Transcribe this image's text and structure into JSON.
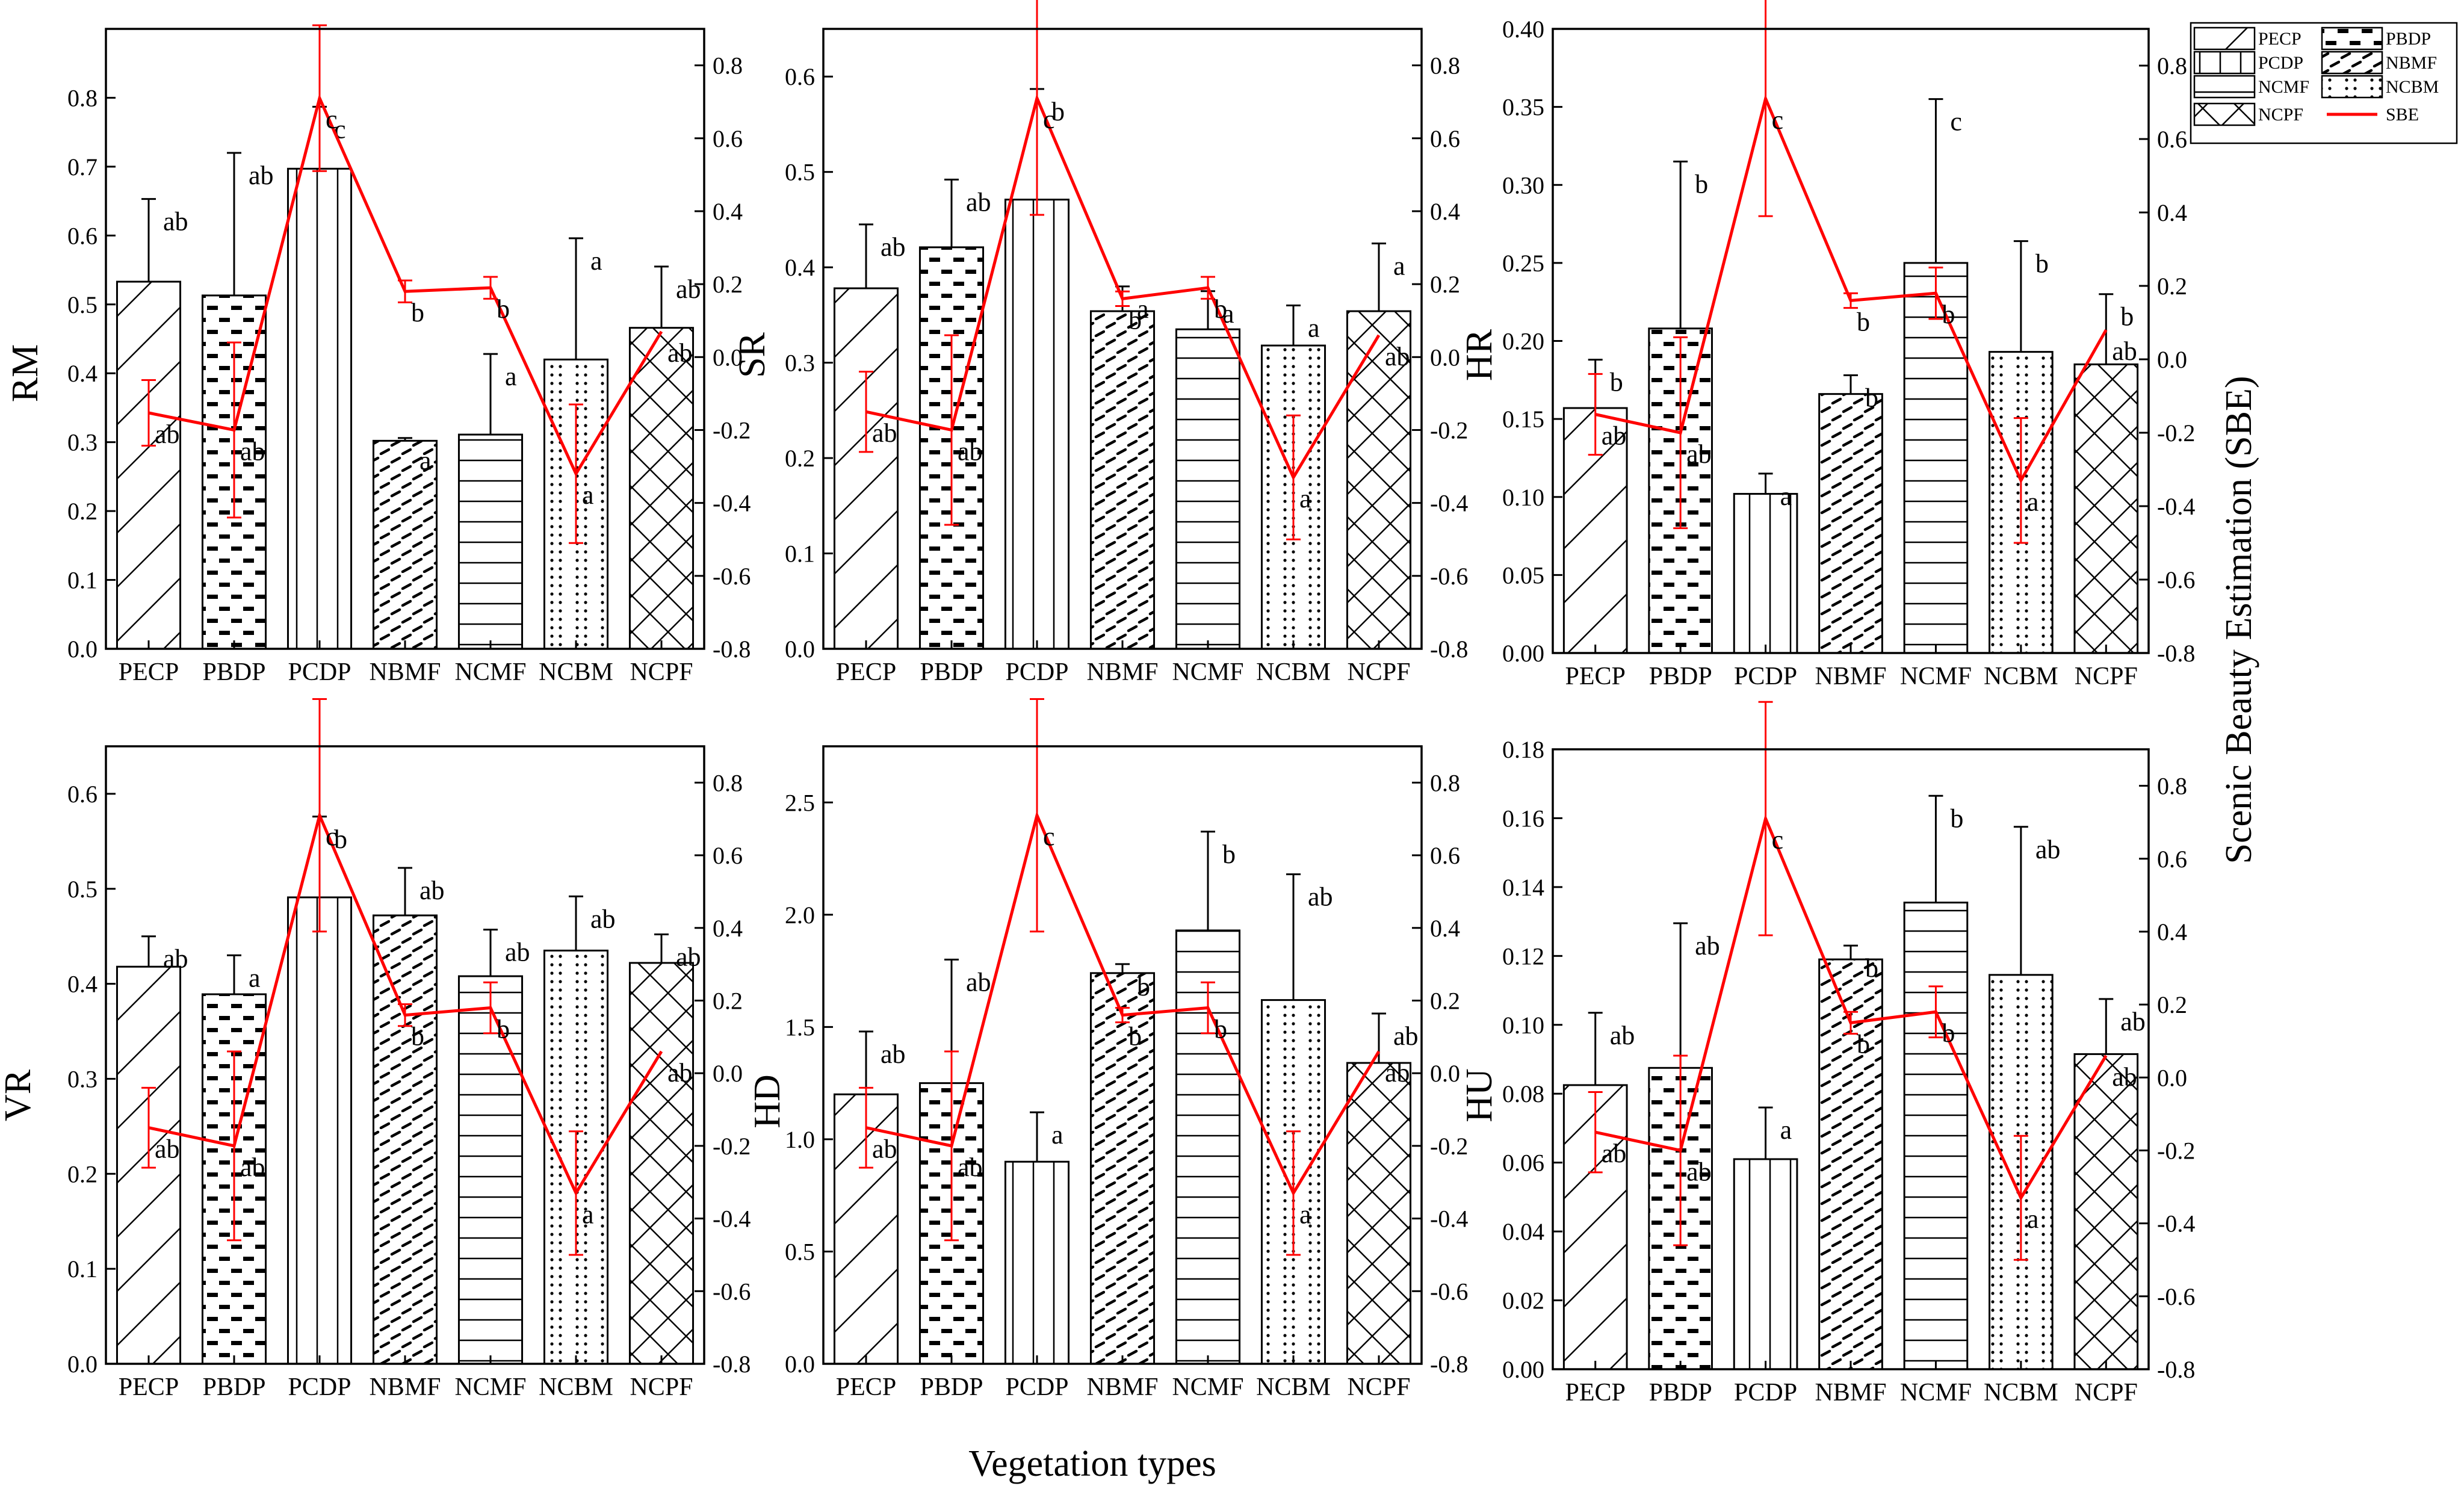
{
  "figure": {
    "xlabel": "Vegetation types",
    "right_ylabel": "Scenic Beauty Estimation (SBE)"
  },
  "legend": {
    "entries": [
      {
        "name": "PECP",
        "pattern": "diag"
      },
      {
        "name": "PBDP",
        "pattern": "dash"
      },
      {
        "name": "PCDP",
        "pattern": "vert"
      },
      {
        "name": "NBMF",
        "pattern": "dashdiag"
      },
      {
        "name": "NCMF",
        "pattern": "horiz"
      },
      {
        "name": "NCBM",
        "pattern": "dots"
      },
      {
        "name": "NCPF",
        "pattern": "cross"
      },
      {
        "name": "SBE",
        "pattern": "line"
      }
    ]
  },
  "colors": {
    "sbe_line": "#ff0000",
    "bar_stroke": "#000000"
  },
  "chart_data": [
    {
      "type": "bar",
      "panel": "RM",
      "ylabel": "RM",
      "categories": [
        "PECP",
        "PBDP",
        "PCDP",
        "NBMF",
        "NCMF",
        "NCBM",
        "NCPF"
      ],
      "values": [
        0.533,
        0.513,
        0.697,
        0.302,
        0.311,
        0.42,
        0.466
      ],
      "errors": [
        0.12,
        0.207,
        0.09,
        0.004,
        0.117,
        0.176,
        0.089
      ],
      "bar_labels": [
        "ab",
        "ab",
        "c",
        "a",
        "a",
        "a",
        "ab"
      ],
      "ylim": [
        0,
        0.9
      ],
      "yticks": [
        "0.0",
        "0.1",
        "0.2",
        "0.3",
        "0.4",
        "0.5",
        "0.6",
        "0.7",
        "0.8"
      ],
      "sbe": {
        "values": [
          -0.153,
          -0.2,
          0.71,
          0.18,
          0.19,
          -0.32,
          0.07
        ],
        "errors": [
          0.09,
          0.24,
          0.2,
          0.03,
          0.03,
          0.19,
          0.0
        ],
        "labels": [
          "ab",
          "ab",
          "c",
          "b",
          "b",
          "a",
          "ab"
        ],
        "ylim": [
          -0.8,
          0.9
        ],
        "yticks": [
          "-0.8",
          "-0.6",
          "-0.4",
          "-0.2",
          "0.0",
          "0.2",
          "0.4",
          "0.6",
          "0.8"
        ]
      }
    },
    {
      "type": "bar",
      "panel": "SR",
      "ylabel": "SR",
      "categories": [
        "PECP",
        "PBDP",
        "PCDP",
        "NBMF",
        "NCMF",
        "NCBM",
        "NCPF"
      ],
      "values": [
        0.378,
        0.421,
        0.471,
        0.354,
        0.335,
        0.318,
        0.354
      ],
      "errors": [
        0.067,
        0.071,
        0.116,
        0.026,
        0.04,
        0.042,
        0.071
      ],
      "bar_labels": [
        "ab",
        "ab",
        "b",
        "a",
        "a",
        "a",
        "a"
      ],
      "ylim": [
        0,
        0.65
      ],
      "yticks": [
        "0.0",
        "0.1",
        "0.2",
        "0.3",
        "0.4",
        "0.5",
        "0.6"
      ],
      "sbe": {
        "values": [
          -0.15,
          -0.2,
          0.71,
          0.16,
          0.19,
          -0.33,
          0.06
        ],
        "errors": [
          0.11,
          0.26,
          0.32,
          0.02,
          0.03,
          0.17,
          0.0
        ],
        "labels": [
          "ab",
          "ab",
          "c",
          "b",
          "b",
          "a",
          "ab"
        ],
        "ylim": [
          -0.8,
          0.9
        ],
        "yticks": [
          "-0.8",
          "-0.6",
          "-0.4",
          "-0.2",
          "0.0",
          "0.2",
          "0.4",
          "0.6",
          "0.8"
        ]
      }
    },
    {
      "type": "bar",
      "panel": "HR",
      "ylabel": "HR",
      "categories": [
        "PECP",
        "PBDP",
        "PCDP",
        "NBMF",
        "NCMF",
        "NCBM",
        "NCPF"
      ],
      "values": [
        0.157,
        0.208,
        0.102,
        0.166,
        0.25,
        0.193,
        0.185
      ],
      "errors": [
        0.031,
        0.107,
        0.013,
        0.012,
        0.105,
        0.071,
        0.045
      ],
      "bar_labels": [
        "b",
        "b",
        "a",
        "b",
        "c",
        "b",
        "b"
      ],
      "ylim": [
        0,
        0.4
      ],
      "yticks": [
        "0.00",
        "0.05",
        "0.10",
        "0.15",
        "0.20",
        "0.25",
        "0.30",
        "0.35",
        "0.40"
      ],
      "sbe": {
        "values": [
          -0.15,
          -0.2,
          0.71,
          0.16,
          0.18,
          -0.33,
          0.08
        ],
        "errors": [
          0.11,
          0.26,
          0.32,
          0.02,
          0.07,
          0.17,
          0.0
        ],
        "labels": [
          "ab",
          "ab",
          "c",
          "b",
          "b",
          "a",
          "ab"
        ],
        "ylim": [
          -0.8,
          0.9
        ],
        "yticks": [
          "-0.8",
          "-0.6",
          "-0.4",
          "-0.2",
          "0.0",
          "0.2",
          "0.4",
          "0.6",
          "0.8"
        ]
      }
    },
    {
      "type": "bar",
      "panel": "VR",
      "ylabel": "VR",
      "categories": [
        "PECP",
        "PBDP",
        "PCDP",
        "NBMF",
        "NCMF",
        "NCBM",
        "NCPF"
      ],
      "values": [
        0.418,
        0.389,
        0.491,
        0.472,
        0.408,
        0.435,
        0.422
      ],
      "errors": [
        0.032,
        0.041,
        0.085,
        0.05,
        0.049,
        0.057,
        0.03
      ],
      "bar_labels": [
        "ab",
        "a",
        "b",
        "ab",
        "ab",
        "ab",
        "ab"
      ],
      "ylim": [
        0,
        0.65
      ],
      "yticks": [
        "0.0",
        "0.1",
        "0.2",
        "0.3",
        "0.4",
        "0.5",
        "0.6"
      ],
      "sbe": {
        "values": [
          -0.15,
          -0.2,
          0.71,
          0.16,
          0.18,
          -0.33,
          0.06
        ],
        "errors": [
          0.11,
          0.26,
          0.32,
          0.03,
          0.07,
          0.17,
          0.0
        ],
        "labels": [
          "ab",
          "ab",
          "c",
          "b",
          "b",
          "a",
          "ab"
        ],
        "ylim": [
          -0.8,
          0.9
        ],
        "yticks": [
          "-0.8",
          "-0.6",
          "-0.4",
          "-0.2",
          "0.0",
          "0.2",
          "0.4",
          "0.6",
          "0.8"
        ]
      }
    },
    {
      "type": "bar",
      "panel": "HD",
      "ylabel": "HD",
      "categories": [
        "PECP",
        "PBDP",
        "PCDP",
        "NBMF",
        "NCMF",
        "NCBM",
        "NCPF"
      ],
      "values": [
        1.2,
        1.25,
        0.9,
        1.74,
        1.93,
        1.62,
        1.34
      ],
      "errors": [
        0.28,
        0.55,
        0.22,
        0.04,
        0.44,
        0.56,
        0.22
      ],
      "bar_labels": [
        "ab",
        "ab",
        "a",
        "b",
        "b",
        "ab",
        "ab"
      ],
      "ylim": [
        0,
        2.75
      ],
      "yticks": [
        "0.0",
        "0.5",
        "1.0",
        "1.5",
        "2.0",
        "2.5"
      ],
      "sbe": {
        "values": [
          -0.15,
          -0.2,
          0.71,
          0.16,
          0.18,
          -0.33,
          0.06
        ],
        "errors": [
          0.11,
          0.26,
          0.32,
          0.02,
          0.07,
          0.17,
          0.0
        ],
        "labels": [
          "ab",
          "ab",
          "c",
          "b",
          "b",
          "a",
          "ab"
        ],
        "ylim": [
          -0.8,
          0.9
        ],
        "yticks": [
          "-0.8",
          "-0.6",
          "-0.4",
          "-0.2",
          "0.0",
          "0.2",
          "0.4",
          "0.6",
          "0.8"
        ]
      }
    },
    {
      "type": "bar",
      "panel": "HU",
      "ylabel": "HU",
      "categories": [
        "PECP",
        "PBDP",
        "PCDP",
        "NBMF",
        "NCMF",
        "NCBM",
        "NCPF"
      ],
      "values": [
        0.0825,
        0.0875,
        0.061,
        0.119,
        0.1355,
        0.1145,
        0.0915
      ],
      "errors": [
        0.021,
        0.042,
        0.015,
        0.004,
        0.031,
        0.043,
        0.016
      ],
      "bar_labels": [
        "ab",
        "ab",
        "a",
        "b",
        "b",
        "ab",
        "ab"
      ],
      "ylim": [
        0,
        0.18
      ],
      "yticks": [
        "0.00",
        "0.02",
        "0.04",
        "0.06",
        "0.08",
        "0.10",
        "0.12",
        "0.14",
        "0.16",
        "0.18"
      ],
      "sbe": {
        "values": [
          -0.15,
          -0.2,
          0.71,
          0.15,
          0.18,
          -0.33,
          0.06
        ],
        "errors": [
          0.11,
          0.26,
          0.32,
          0.03,
          0.07,
          0.17,
          0.0
        ],
        "labels": [
          "ab",
          "ab",
          "c",
          "b",
          "b",
          "a",
          "ab"
        ],
        "ylim": [
          -0.8,
          0.9
        ],
        "yticks": [
          "-0.8",
          "-0.6",
          "-0.4",
          "-0.2",
          "0.0",
          "0.2",
          "0.4",
          "0.6",
          "0.8"
        ]
      }
    }
  ]
}
